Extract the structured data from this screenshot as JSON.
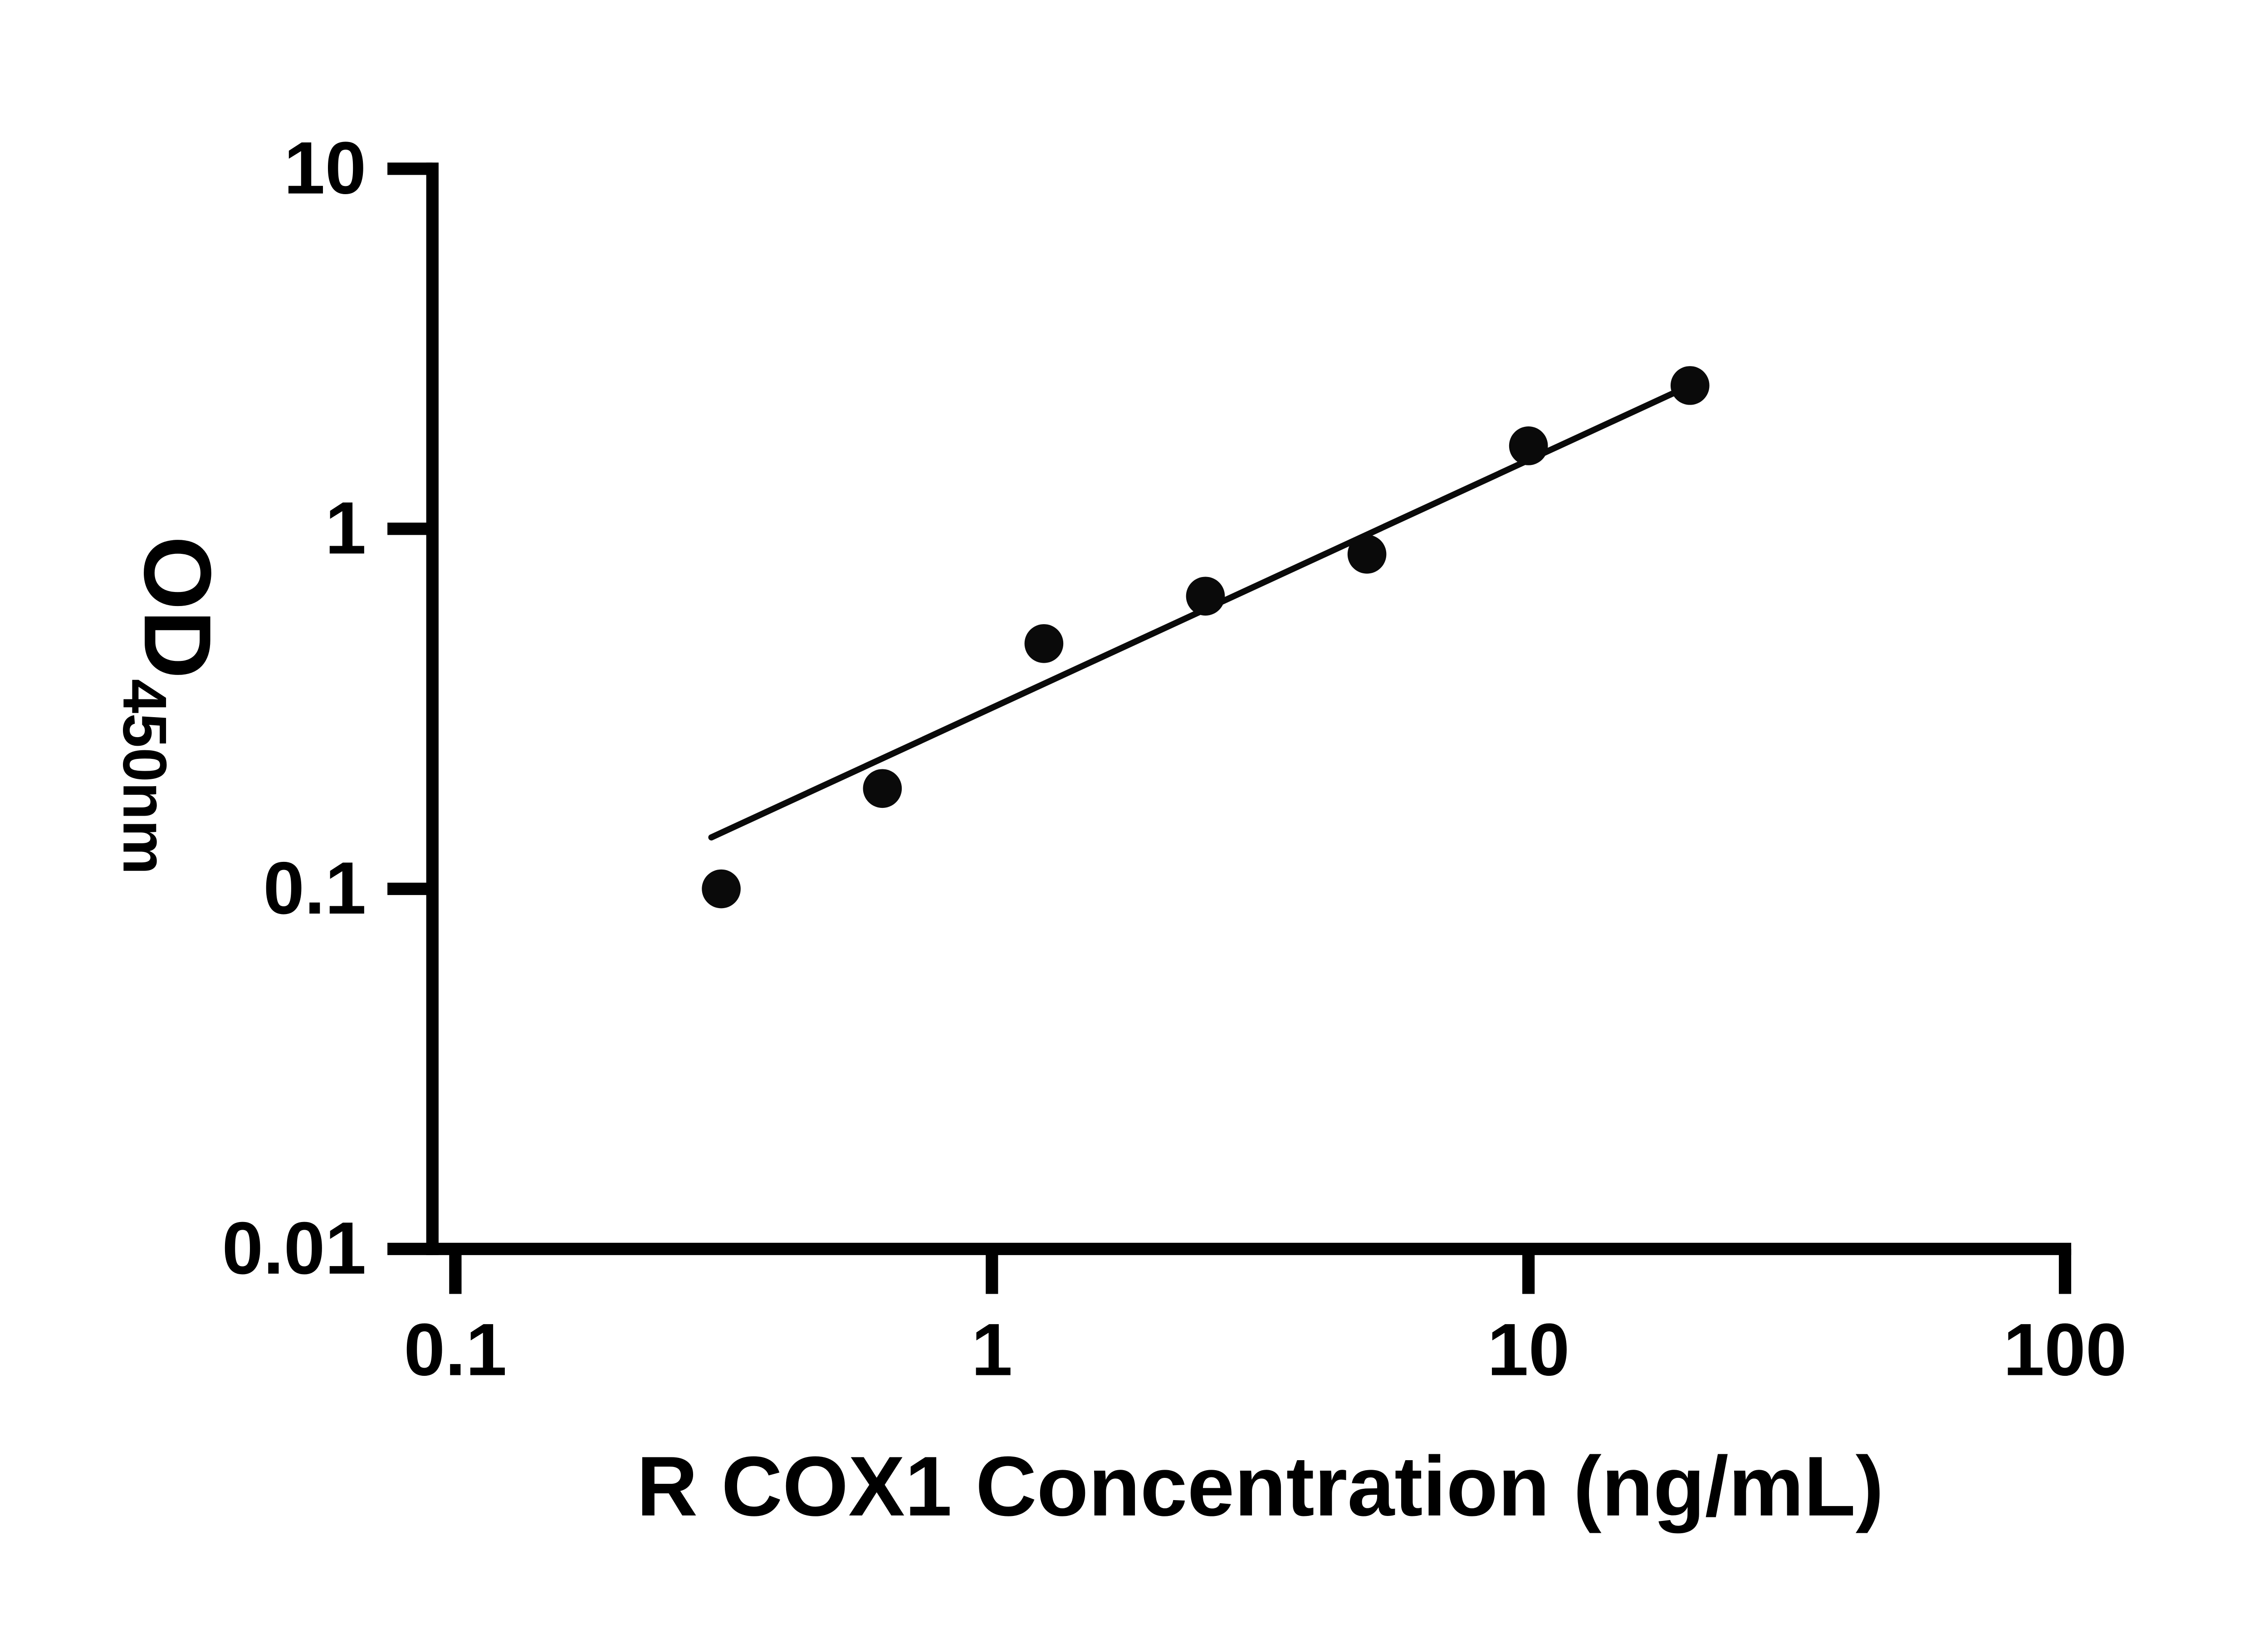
{
  "page": {
    "background_color": "#ffffff",
    "foreground_color": "#000000"
  },
  "chart_data": {
    "type": "scatter",
    "title": "",
    "xlabel": "R COX1 Concentration (ng/mL)",
    "ylabel_main": "OD",
    "ylabel_sub": "450nm",
    "x_scale": "log",
    "y_scale": "log",
    "xlim": [
      0.1,
      100
    ],
    "ylim": [
      0.01,
      10
    ],
    "x_ticks": [
      0.1,
      1,
      10,
      100
    ],
    "x_tick_labels": [
      "0.1",
      "1",
      "10",
      "100"
    ],
    "y_ticks": [
      10,
      1,
      0.1,
      0.01
    ],
    "y_tick_labels": [
      "10",
      "1",
      "0.1",
      "0.01"
    ],
    "grid": false,
    "legend": "none",
    "marker_color": "#0a0a0a",
    "line_color": "#0a0a0a",
    "series": [
      {
        "name": "standard-points",
        "type": "scatter",
        "marker": "circle",
        "color": "#0a0a0a",
        "x": [
          0.313,
          0.625,
          1.25,
          2.5,
          5,
          10,
          20
        ],
        "y": [
          0.1,
          0.19,
          0.48,
          0.65,
          0.85,
          1.7,
          2.5
        ]
      },
      {
        "name": "fit-line",
        "type": "line",
        "color": "#0a0a0a",
        "x": [
          0.3,
          20
        ],
        "y": [
          0.139,
          2.5
        ]
      }
    ]
  }
}
